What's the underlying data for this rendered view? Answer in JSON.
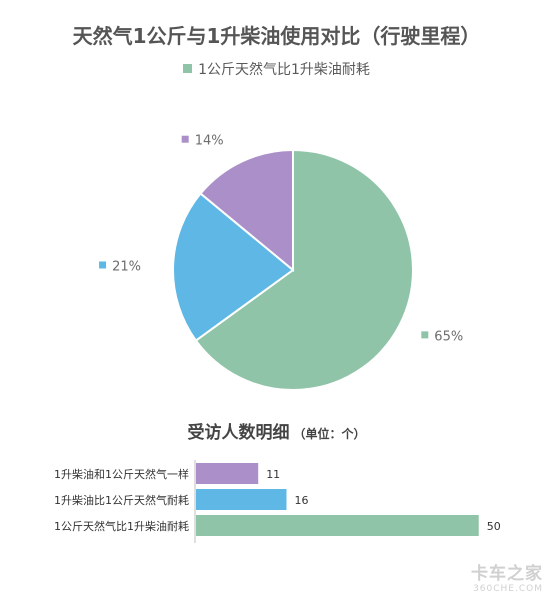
{
  "chart_data": [
    {
      "type": "pie",
      "title": "天然气1公斤与1升柴油使用对比（行驶里程）",
      "legend": [
        "1公斤天然气比1升柴油耐耗"
      ],
      "legend_position": "top",
      "slices": [
        {
          "label": "65%",
          "value": 65,
          "color": "#8fc4a8"
        },
        {
          "label": "21%",
          "value": 21,
          "color": "#5eb7e5"
        },
        {
          "label": "14%",
          "value": 14,
          "color": "#ab8fc8"
        }
      ]
    },
    {
      "type": "bar",
      "orientation": "horizontal",
      "title": "受访人数明细",
      "unit_note": "（单位：个）",
      "categories": [
        "1升柴油和1公斤天然气一样",
        "1升柴油比1公斤天然气耐耗",
        "1公斤天然气比1升柴油耐耗"
      ],
      "values": [
        11,
        16,
        50
      ],
      "colors": [
        "#ab8fc8",
        "#5eb7e5",
        "#8fc4a8"
      ],
      "xlim": [
        0,
        55
      ],
      "grid": false
    }
  ],
  "watermark": {
    "main": "卡车之家",
    "sub": "360CHE.COM"
  }
}
